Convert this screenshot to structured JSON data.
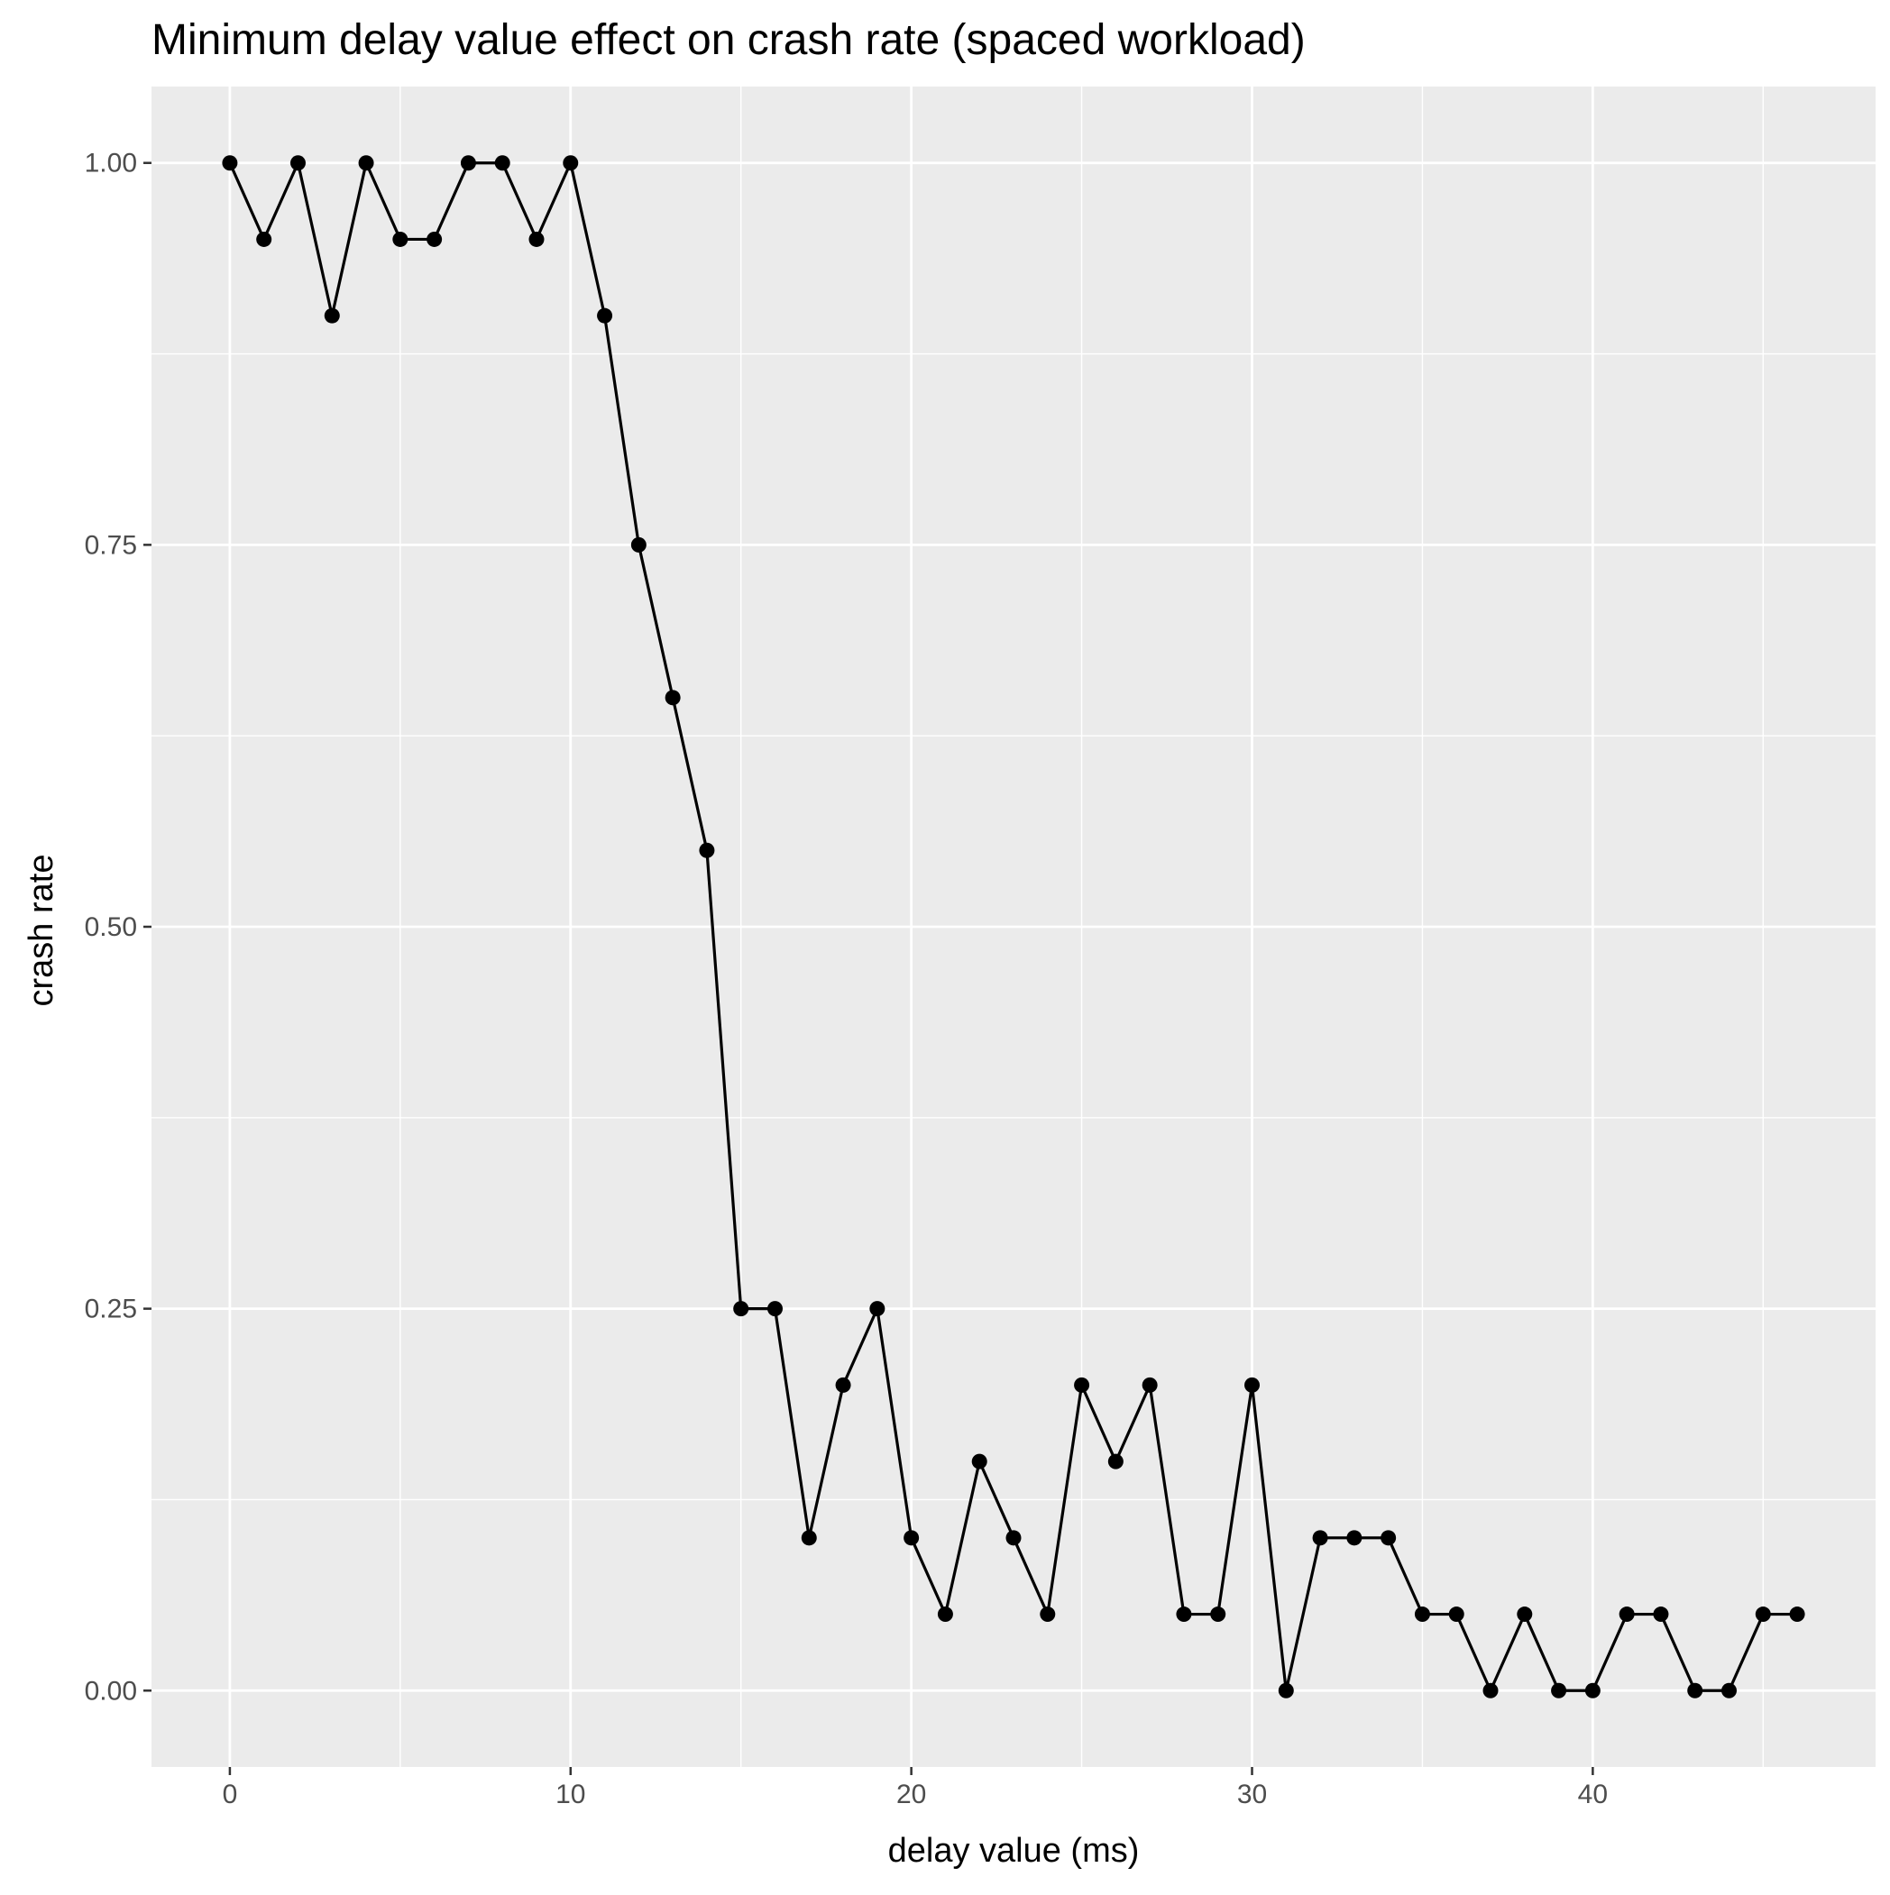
{
  "chart_data": {
    "type": "line",
    "title": "Minimum delay value effect on crash rate (spaced workload)",
    "xlabel": "delay value (ms)",
    "ylabel": "crash rate",
    "xlim": [
      -2.3,
      48.3
    ],
    "ylim": [
      -0.05,
      1.05
    ],
    "x_ticks": [
      0,
      10,
      20,
      30,
      40
    ],
    "x_tick_labels": [
      "0",
      "10",
      "20",
      "30",
      "40"
    ],
    "y_ticks": [
      0.0,
      0.25,
      0.5,
      0.75,
      1.0
    ],
    "y_tick_labels": [
      "0.00",
      "0.25",
      "0.50",
      "0.75",
      "1.00"
    ],
    "x_minor_ticks": [
      5,
      15,
      25,
      35,
      45
    ],
    "y_minor_ticks": [
      0.125,
      0.375,
      0.625,
      0.875
    ],
    "grid": true,
    "legend": "none",
    "colors": {
      "panel_background": "#ebebeb",
      "grid_major": "#ffffff",
      "grid_minor": "#ffffff",
      "line": "#000000",
      "point": "#000000"
    },
    "series": [
      {
        "x": [
          0,
          1,
          2,
          3,
          4,
          5,
          6,
          7,
          8,
          9,
          10,
          11,
          12,
          13,
          14,
          15,
          16,
          17,
          18,
          19,
          20,
          21,
          22,
          23,
          24,
          25,
          26,
          27,
          28,
          29,
          30,
          31,
          32,
          33,
          34,
          35,
          36,
          37,
          38,
          39,
          40,
          41,
          42,
          43,
          44,
          45,
          46
        ],
        "values": [
          1.0,
          0.95,
          1.0,
          0.9,
          1.0,
          0.95,
          0.95,
          1.0,
          1.0,
          0.95,
          1.0,
          0.9,
          0.75,
          0.65,
          0.55,
          0.25,
          0.25,
          0.1,
          0.2,
          0.25,
          0.1,
          0.05,
          0.15,
          0.1,
          0.05,
          0.2,
          0.15,
          0.2,
          0.05,
          0.05,
          0.2,
          0.0,
          0.1,
          0.1,
          0.1,
          0.05,
          0.05,
          0.0,
          0.05,
          0.0,
          0.0,
          0.05,
          0.05,
          0.0,
          0.0,
          0.05,
          0.05
        ]
      }
    ]
  }
}
